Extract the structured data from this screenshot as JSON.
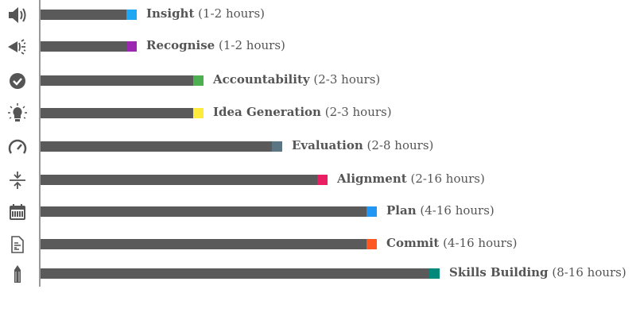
{
  "chart_data": {
    "type": "bar",
    "orientation": "horizontal",
    "value_scale": "relative bar length, 0-100",
    "xlim": [
      0,
      100
    ],
    "grid": false,
    "categories": [
      "Insight",
      "Recognise",
      "Accountability",
      "Idea Generation",
      "Evaluation",
      "Alignment",
      "Plan",
      "Commit",
      "Skills Building"
    ],
    "durations": [
      "(1-2 hours)",
      "(1-2 hours)",
      "(2-3 hours)",
      "(2-3 hours)",
      "(2-8 hours)",
      "(2-16 hours)",
      "(4-16 hours)",
      "(4-16 hours)",
      "(8-16 hours)"
    ],
    "values": [
      23.3,
      23.3,
      39.4,
      39.4,
      58.5,
      69.4,
      81.3,
      81.3,
      96.5
    ],
    "accent_colors": [
      "#1ea7f2",
      "#9c27b0",
      "#4caf50",
      "#ffeb3b",
      "#5b7682",
      "#e91e63",
      "#2196f3",
      "#ff5722",
      "#00897b"
    ],
    "icons": [
      "speaker-icon",
      "party-popper-icon",
      "check-circle-icon",
      "lightbulb-icon",
      "speedometer-icon",
      "compress-arrows-icon",
      "calendar-icon",
      "document-list-icon",
      "pencil-icon"
    ],
    "bar_color": "#5a5a5a"
  }
}
